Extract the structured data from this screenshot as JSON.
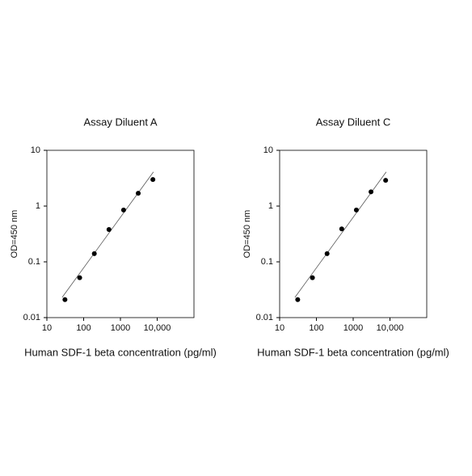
{
  "chart_data": [
    {
      "type": "scatter",
      "log_x": true,
      "log_y": true,
      "title": "Assay Diluent A",
      "x_label": "Human SDF-1 beta concentration (pg/ml)",
      "y_label": "OD=450 nm",
      "x": [
        31,
        78,
        195,
        488,
        1220,
        3050,
        7630
      ],
      "values": [
        0.021,
        0.052,
        0.14,
        0.38,
        0.85,
        1.7,
        3.0
      ],
      "color": "#000000",
      "trendline": {
        "x": [
          26,
          7900
        ],
        "y": [
          0.023,
          4.1
        ],
        "color": "#555555"
      },
      "xlim": [
        10,
        100000
      ],
      "xticks": [
        10,
        100,
        1000,
        {
          "value": 10000,
          "label": "10,000"
        }
      ],
      "ylim": [
        0.01,
        10
      ],
      "yticks": [
        0.01,
        0.1,
        1,
        10
      ]
    },
    {
      "type": "scatter",
      "log_x": true,
      "log_y": true,
      "title": "Assay Diluent C",
      "x_label": "Human SDF-1 beta concentration (pg/ml)",
      "y_label": "OD=450 nm",
      "x": [
        31,
        78,
        195,
        488,
        1220,
        3050,
        7630
      ],
      "values": [
        0.021,
        0.052,
        0.14,
        0.39,
        0.85,
        1.8,
        2.9
      ],
      "color": "#000000",
      "trendline": {
        "x": [
          26,
          7900
        ],
        "y": [
          0.023,
          4.1
        ],
        "color": "#555555"
      },
      "xlim": [
        10,
        100000
      ],
      "xticks": [
        10,
        100,
        1000,
        {
          "value": 10000,
          "label": "10,000"
        }
      ],
      "ylim": [
        0.01,
        10
      ],
      "yticks": [
        0.01,
        0.1,
        1,
        10
      ]
    }
  ]
}
